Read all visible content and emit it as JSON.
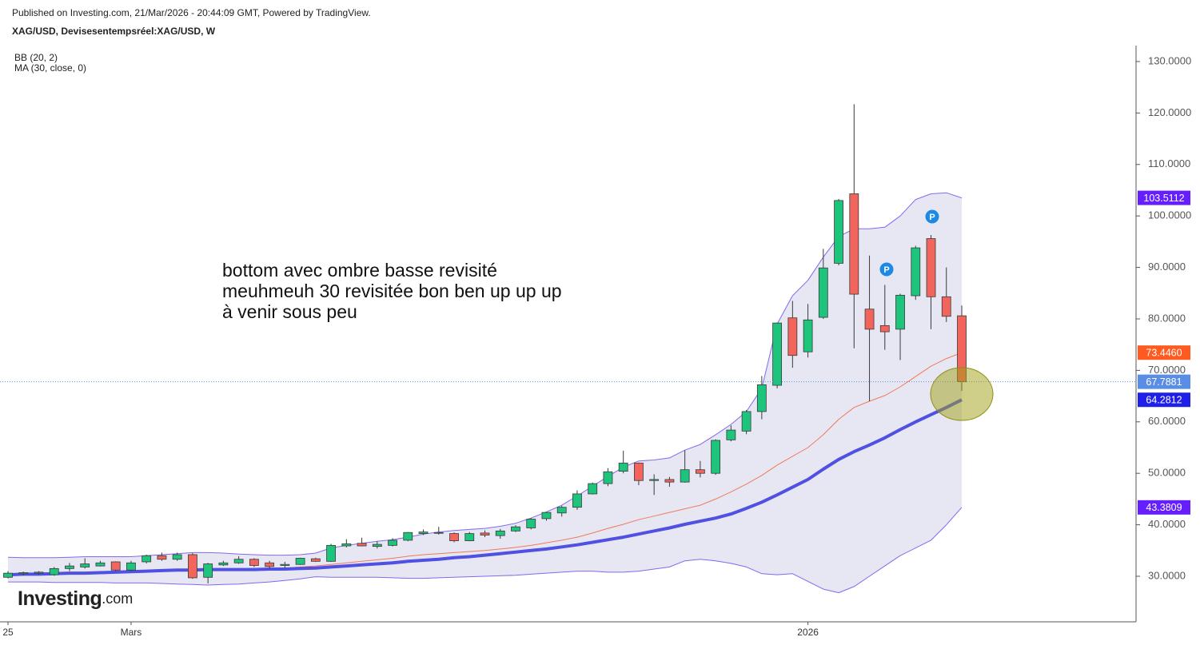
{
  "header": {
    "published": "Published on Investing.com, 21/Mar/2026 - 20:44:09 GMT, Powered by TradingView.",
    "symbol": "XAG/USD, Devisesentempsréel:XAG/USD, W",
    "logo_main": "Investing",
    "logo_suffix": ".com"
  },
  "markers": [
    "P",
    "P"
  ],
  "chart_data": {
    "type": "candlestick",
    "annotation": [
      "bottom avec ombre basse revisité",
      "meuhmeuh 30 revisitée bon ben up up up",
      "à venir sous peu"
    ],
    "categories": [
      "25",
      null,
      null,
      null,
      null,
      null,
      null,
      null,
      "Mars",
      null,
      null,
      null,
      null,
      null,
      null,
      null,
      null,
      null,
      null,
      null,
      null,
      null,
      null,
      null,
      null,
      null,
      null,
      null,
      null,
      null,
      null,
      null,
      null,
      null,
      null,
      null,
      null,
      null,
      null,
      null,
      null,
      null,
      null,
      null,
      null,
      null,
      null,
      null,
      null,
      null,
      null,
      null,
      "2026",
      null,
      null,
      null,
      null,
      null,
      null,
      null,
      null,
      null,
      null
    ],
    "open": [
      29.8,
      30.5,
      30.6,
      30.3,
      31.5,
      31.8,
      32.0,
      32.8,
      31.2,
      32.8,
      34.0,
      33.3,
      34.2,
      29.8,
      32.2,
      32.6,
      33.3,
      32.6,
      32.1,
      32.3,
      33.4,
      32.9,
      35.9,
      36.4,
      35.8,
      36.0,
      37.0,
      38.3,
      38.4,
      38.3,
      36.9,
      38.4,
      37.9,
      38.8,
      39.4,
      41.2,
      42.3,
      43.4,
      46.0,
      48.0,
      50.4,
      52.0,
      48.6,
      48.8,
      48.3,
      50.7,
      50.0,
      56.5,
      58.2,
      62.0,
      67.1,
      80.2,
      73.6,
      80.3,
      90.8,
      104.3,
      81.9,
      78.7,
      78.0,
      84.5,
      95.6,
      84.3,
      80.6
    ],
    "high": [
      31,
      30.9,
      31.0,
      31.8,
      32.6,
      33.5,
      33.0,
      32.9,
      33.0,
      34.2,
      34.6,
      34.6,
      34.5,
      32.6,
      33.0,
      33.9,
      33.5,
      33.0,
      32.8,
      33.6,
      33.6,
      36.3,
      37.2,
      37.5,
      36.8,
      37.4,
      38.6,
      39.1,
      39.6,
      38.5,
      38.6,
      38.9,
      39.2,
      39.9,
      41.3,
      42.5,
      43.7,
      46.7,
      48.2,
      51.0,
      54.4,
      52.1,
      49.8,
      49.3,
      54.5,
      52.4,
      56.6,
      59.3,
      62.3,
      68.9,
      79.3,
      83.5,
      82.9,
      93.6,
      103.3,
      121.7,
      92.3,
      86.6,
      84.9,
      94.2,
      96.3,
      90.0,
      82.6
    ],
    "low": [
      29.6,
      30.2,
      30.3,
      30.1,
      31.0,
      31.5,
      31.9,
      31.0,
      31.0,
      32.5,
      33.0,
      33.0,
      29.5,
      28.6,
      32.0,
      32.4,
      31.8,
      31.5,
      31.6,
      32.2,
      32.8,
      32.8,
      35.6,
      35.8,
      35.4,
      35.8,
      36.8,
      38.0,
      38.1,
      36.6,
      36.8,
      37.6,
      37.3,
      38.6,
      39.1,
      40.8,
      41.6,
      42.9,
      45.9,
      47.5,
      50.0,
      47.7,
      45.8,
      47.4,
      48.2,
      49.2,
      49.7,
      56.2,
      57.6,
      60.5,
      66.5,
      70.5,
      72.5,
      80.0,
      90.4,
      74.3,
      64.0,
      74.0,
      72.0,
      83.7,
      78.0,
      79.4,
      66.0
    ],
    "close": [
      30.6,
      30.7,
      30.8,
      31.5,
      32.0,
      32.4,
      32.6,
      31.2,
      32.6,
      34.0,
      33.3,
      34.2,
      29.7,
      32.4,
      32.6,
      33.3,
      32.1,
      31.9,
      32.3,
      33.5,
      32.9,
      36.0,
      36.3,
      35.9,
      36.2,
      37.0,
      38.5,
      38.6,
      38.5,
      36.9,
      38.3,
      38.0,
      38.8,
      39.6,
      41.1,
      42.4,
      43.4,
      46.0,
      48.0,
      50.3,
      52.0,
      48.6,
      48.8,
      48.3,
      50.7,
      50.0,
      56.4,
      58.4,
      62.0,
      67.2,
      79.2,
      72.9,
      79.8,
      89.9,
      103.0,
      84.8,
      78.0,
      77.5,
      84.6,
      93.8,
      84.3,
      80.5,
      67.7881
    ],
    "up_color": "#1dc47c",
    "down_color": "#f2655d",
    "last_price_color": "#5a8ee6",
    "ylim": [
      21.15,
      133.1
    ],
    "yticks": [
      {
        "value": 30,
        "label": "30.0000"
      },
      {
        "value": 40,
        "label": "40.0000"
      },
      {
        "value": 50,
        "label": "50.0000"
      },
      {
        "value": 60,
        "label": "60.0000"
      },
      {
        "value": 70,
        "label": "70.0000"
      },
      {
        "value": 80,
        "label": "80.0000"
      },
      {
        "value": 90,
        "label": "90.0000"
      },
      {
        "value": 100,
        "label": "100.0000"
      },
      {
        "value": 110,
        "label": "110.0000"
      },
      {
        "value": 120,
        "label": "120.0000"
      },
      {
        "value": 130,
        "label": "130.0000"
      }
    ],
    "indicators": [
      {
        "name": "BB (20, 2)",
        "fill": "#e4e4f3",
        "upper": {
          "color": "#8468ee",
          "label_color": "#651fff",
          "last_label": "103.5112",
          "values": [
            33.7,
            33.6,
            33.6,
            33.6,
            33.7,
            33.8,
            33.8,
            33.8,
            33.8,
            34.0,
            34.2,
            34.4,
            34.6,
            34.6,
            34.5,
            34.3,
            34.2,
            34.1,
            34.1,
            34.2,
            34.5,
            35.5,
            36.0,
            36.4,
            36.8,
            37.1,
            37.6,
            38.2,
            38.6,
            38.9,
            39.1,
            39.3,
            39.7,
            40.3,
            41.3,
            42.5,
            43.8,
            45.6,
            47.5,
            49.4,
            51.2,
            52.4,
            52.6,
            53.0,
            54.5,
            55.6,
            57.5,
            59.5,
            62.0,
            66.5,
            79.0,
            84.5,
            87.5,
            92.0,
            96.0,
            97.5,
            97.5,
            97.8,
            100.0,
            103.2,
            104.3,
            104.5,
            103.5112
          ]
        },
        "basis": {
          "color": "#f07a5a",
          "label_color": "#ff5a1f",
          "last_label": "73.4460",
          "values": [
            30.4,
            30.5,
            30.5,
            30.6,
            30.6,
            30.7,
            30.8,
            30.8,
            30.9,
            31.0,
            31.1,
            31.2,
            31.2,
            31.2,
            31.3,
            31.3,
            31.4,
            31.5,
            31.6,
            31.8,
            32.0,
            32.3,
            32.6,
            32.9,
            33.2,
            33.5,
            33.9,
            34.2,
            34.4,
            34.6,
            34.8,
            35.0,
            35.3,
            35.6,
            36.0,
            36.5,
            37.0,
            37.6,
            38.4,
            39.3,
            40.1,
            41.0,
            41.7,
            42.4,
            43.1,
            43.8,
            45.0,
            46.4,
            47.9,
            49.6,
            51.6,
            53.3,
            55.0,
            57.5,
            60.5,
            62.8,
            64.0,
            65.1,
            66.8,
            68.8,
            70.8,
            72.3,
            73.446
          ]
        },
        "lower": {
          "color": "#8468ee",
          "label_color": "#651fff",
          "last_label": "43.3809",
          "values": [
            28.9,
            28.9,
            28.9,
            28.8,
            28.8,
            28.8,
            28.8,
            28.7,
            28.7,
            28.7,
            28.6,
            28.5,
            28.4,
            28.3,
            28.4,
            28.5,
            28.7,
            28.9,
            29.2,
            29.5,
            29.9,
            29.8,
            29.8,
            29.8,
            29.8,
            29.7,
            29.6,
            29.6,
            29.7,
            29.8,
            29.9,
            30.0,
            30.1,
            30.2,
            30.4,
            30.6,
            30.8,
            31.0,
            31.0,
            30.8,
            30.8,
            31.0,
            31.4,
            31.8,
            33.0,
            33.3,
            33.0,
            32.5,
            31.8,
            30.5,
            30.3,
            30.5,
            29.0,
            27.5,
            26.8,
            28.0,
            30.0,
            32.0,
            34.0,
            35.5,
            37.0,
            40.0,
            43.3809
          ]
        }
      },
      {
        "name": "MA (30, close, 0)",
        "color": "#5050e2",
        "label_color": "#1f1fe8",
        "last_label": "64.2812",
        "values": [
          30.3,
          30.4,
          30.4,
          30.5,
          30.6,
          30.6,
          30.7,
          30.8,
          30.9,
          31.0,
          31.1,
          31.2,
          31.2,
          31.3,
          31.3,
          31.3,
          31.3,
          31.4,
          31.4,
          31.5,
          31.6,
          31.8,
          32.0,
          32.2,
          32.4,
          32.6,
          32.9,
          33.1,
          33.3,
          33.6,
          33.8,
          34.1,
          34.4,
          34.7,
          35.0,
          35.3,
          35.7,
          36.1,
          36.6,
          37.1,
          37.6,
          38.2,
          38.8,
          39.4,
          40.1,
          40.7,
          41.3,
          42.1,
          43.2,
          44.4,
          45.8,
          47.3,
          48.8,
          50.8,
          52.7,
          54.2,
          55.5,
          56.9,
          58.5,
          60.0,
          61.4,
          62.8,
          64.2812
        ]
      }
    ]
  }
}
